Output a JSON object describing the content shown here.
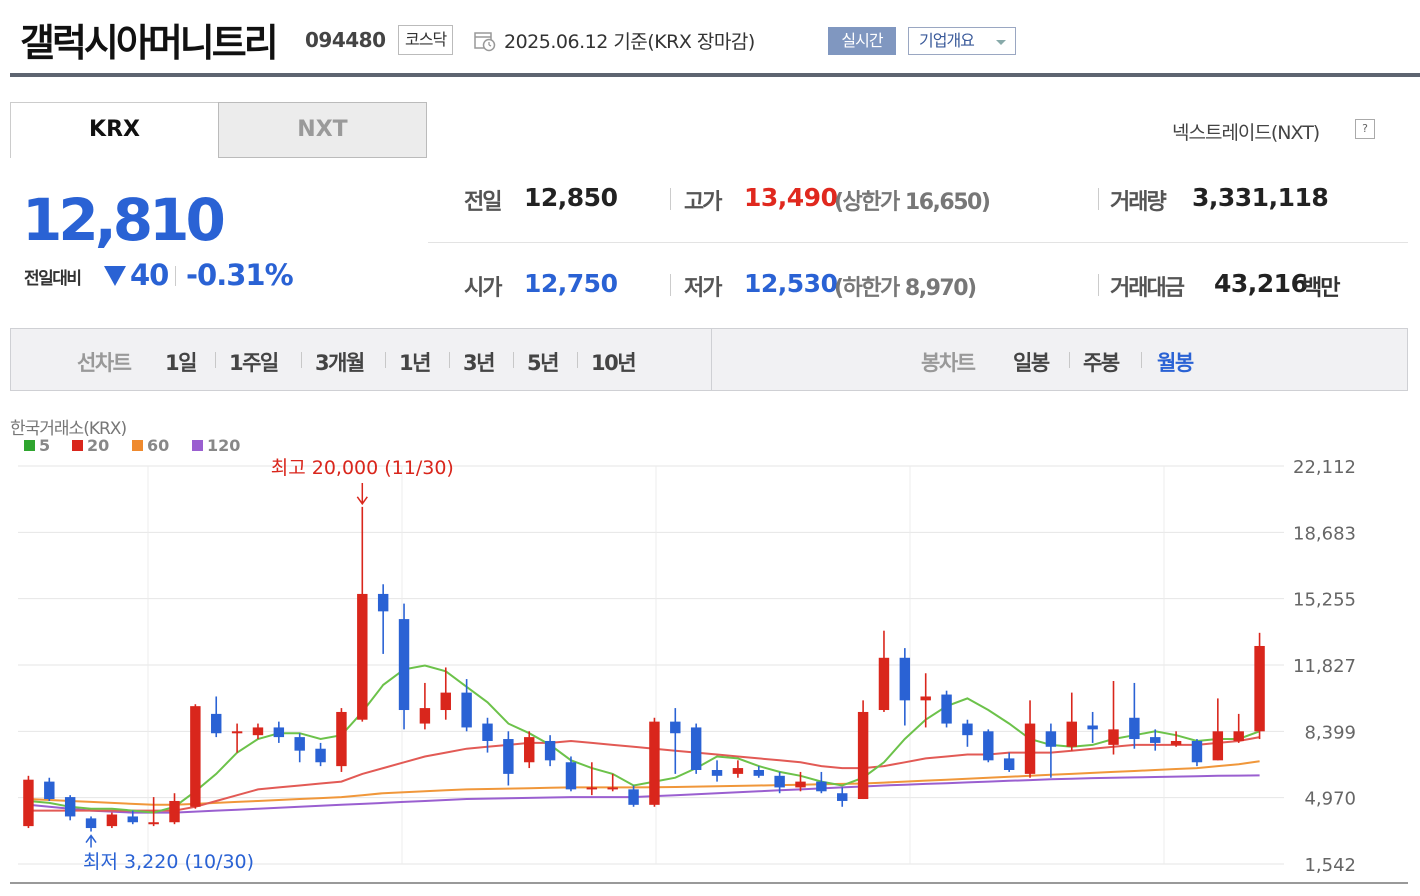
{
  "header": {
    "company": "갤럭시아머니트리",
    "code": "094480",
    "market": "코스닥",
    "date_info": "2025.06.12  기준(KRX 장마감)",
    "realtime_label": "실시간",
    "overview_label": "기업개요"
  },
  "tabs": {
    "krx": "KRX",
    "nxt": "NXT",
    "nxt_link": "넥스트레이드(NXT)",
    "nxt_link_icon": "?"
  },
  "price": {
    "current": "12,810",
    "change_label": "전일대비",
    "change": "40",
    "change_pct": "-0.31%",
    "direction": "down"
  },
  "stats": {
    "prev_label": "전일",
    "prev": "12,850",
    "high_label": "고가",
    "high": "13,490",
    "upper_label": "(상한가 16,650)",
    "volume_label": "거래량",
    "volume": "3,331,118",
    "open_label": "시가",
    "open": "12,750",
    "low_label": "저가",
    "low": "12,530",
    "lower_label": "(하한가 8,970)",
    "amount_label": "거래대금",
    "amount": "43,216",
    "amount_unit": "백만"
  },
  "periods": {
    "line_label": "선차트",
    "line_items": [
      "1일",
      "1주일",
      "3개월",
      "1년",
      "3년",
      "5년",
      "10년"
    ],
    "candle_label": "봉차트",
    "candle_items": [
      "일봉",
      "주봉",
      "월봉"
    ],
    "active": "월봉"
  },
  "colors": {
    "up": "#d9261c",
    "down": "#2a62d4",
    "ma5": "#6cc24a",
    "ma20": "#e25a55",
    "ma60": "#f0973a",
    "ma120": "#9a5fd0"
  },
  "chart_data": {
    "type": "candlestick",
    "source": "한국거래소(KRX)",
    "legend": [
      {
        "name": "5",
        "color": "#2fa52f"
      },
      {
        "name": "20",
        "color": "#d9261c"
      },
      {
        "name": "60",
        "color": "#ef8a2e"
      },
      {
        "name": "120",
        "color": "#9a5fd0"
      }
    ],
    "y_ticks": [
      "22,112",
      "18,683",
      "15,255",
      "11,827",
      "8,399",
      "4,970",
      "1,542"
    ],
    "ylim": [
      1542,
      22112
    ],
    "high_note": "최고 20,000 (11/30)",
    "low_note": "최저 3,220 (10/30)",
    "high_index": 16,
    "low_index": 3,
    "candles": [
      {
        "o": 3500,
        "c": 5900,
        "h": 6100,
        "l": 3400
      },
      {
        "o": 5800,
        "c": 4900,
        "h": 6000,
        "l": 4800
      },
      {
        "o": 5000,
        "c": 4000,
        "h": 5100,
        "l": 3800
      },
      {
        "o": 3900,
        "c": 3400,
        "h": 4000,
        "l": 3220
      },
      {
        "o": 3500,
        "c": 4100,
        "h": 4200,
        "l": 3400
      },
      {
        "o": 4000,
        "c": 3700,
        "h": 4300,
        "l": 3600
      },
      {
        "o": 3600,
        "c": 3700,
        "h": 5000,
        "l": 3500
      },
      {
        "o": 3700,
        "c": 4800,
        "h": 5200,
        "l": 3600
      },
      {
        "o": 4500,
        "c": 9700,
        "h": 9800,
        "l": 4400
      },
      {
        "o": 9300,
        "c": 8300,
        "h": 10200,
        "l": 8100
      },
      {
        "o": 8300,
        "c": 8400,
        "h": 8800,
        "l": 7300
      },
      {
        "o": 8200,
        "c": 8600,
        "h": 8800,
        "l": 8000
      },
      {
        "o": 8600,
        "c": 8100,
        "h": 8900,
        "l": 7800
      },
      {
        "o": 8100,
        "c": 7400,
        "h": 8300,
        "l": 6800
      },
      {
        "o": 7500,
        "c": 6800,
        "h": 7800,
        "l": 6600
      },
      {
        "o": 6600,
        "c": 9400,
        "h": 9600,
        "l": 6300
      },
      {
        "o": 9000,
        "c": 15500,
        "h": 20000,
        "l": 8900
      },
      {
        "o": 15500,
        "c": 14600,
        "h": 16000,
        "l": 12400
      },
      {
        "o": 14200,
        "c": 9500,
        "h": 15000,
        "l": 8500
      },
      {
        "o": 8800,
        "c": 9600,
        "h": 10900,
        "l": 8500
      },
      {
        "o": 9500,
        "c": 10400,
        "h": 11700,
        "l": 9000
      },
      {
        "o": 10400,
        "c": 8600,
        "h": 11100,
        "l": 8400
      },
      {
        "o": 8800,
        "c": 7900,
        "h": 9100,
        "l": 7300
      },
      {
        "o": 8000,
        "c": 6200,
        "h": 8400,
        "l": 5600
      },
      {
        "o": 6800,
        "c": 8100,
        "h": 8400,
        "l": 6500
      },
      {
        "o": 7900,
        "c": 6900,
        "h": 8200,
        "l": 6600
      },
      {
        "o": 6800,
        "c": 5400,
        "h": 7100,
        "l": 5300
      },
      {
        "o": 5400,
        "c": 5500,
        "h": 6800,
        "l": 5100
      },
      {
        "o": 5400,
        "c": 5500,
        "h": 6200,
        "l": 5300
      },
      {
        "o": 5400,
        "c": 4600,
        "h": 5600,
        "l": 4500
      },
      {
        "o": 4600,
        "c": 8900,
        "h": 9100,
        "l": 4500
      },
      {
        "o": 8900,
        "c": 8300,
        "h": 9600,
        "l": 6200
      },
      {
        "o": 8600,
        "c": 6400,
        "h": 8800,
        "l": 6200
      },
      {
        "o": 6400,
        "c": 6100,
        "h": 6900,
        "l": 5800
      },
      {
        "o": 6200,
        "c": 6500,
        "h": 6900,
        "l": 6000
      },
      {
        "o": 6400,
        "c": 6100,
        "h": 6600,
        "l": 6000
      },
      {
        "o": 6100,
        "c": 5500,
        "h": 6300,
        "l": 5200
      },
      {
        "o": 5500,
        "c": 5800,
        "h": 6300,
        "l": 5300
      },
      {
        "o": 5800,
        "c": 5300,
        "h": 6300,
        "l": 5200
      },
      {
        "o": 5200,
        "c": 4800,
        "h": 5500,
        "l": 4500
      },
      {
        "o": 4900,
        "c": 9400,
        "h": 10000,
        "l": 4900
      },
      {
        "o": 9500,
        "c": 12200,
        "h": 13600,
        "l": 9400
      },
      {
        "o": 12200,
        "c": 10000,
        "h": 12700,
        "l": 8700
      },
      {
        "o": 10000,
        "c": 10200,
        "h": 11400,
        "l": 8600
      },
      {
        "o": 10300,
        "c": 8800,
        "h": 10500,
        "l": 8600
      },
      {
        "o": 8800,
        "c": 8200,
        "h": 9000,
        "l": 7600
      },
      {
        "o": 8400,
        "c": 6900,
        "h": 8500,
        "l": 6800
      },
      {
        "o": 7000,
        "c": 6400,
        "h": 7300,
        "l": 6300
      },
      {
        "o": 6200,
        "c": 8800,
        "h": 10000,
        "l": 6000
      },
      {
        "o": 8400,
        "c": 7600,
        "h": 8800,
        "l": 6000
      },
      {
        "o": 7600,
        "c": 8900,
        "h": 10400,
        "l": 7400
      },
      {
        "o": 8700,
        "c": 8500,
        "h": 9400,
        "l": 7800
      },
      {
        "o": 7700,
        "c": 8500,
        "h": 11000,
        "l": 7200
      },
      {
        "o": 9100,
        "c": 8000,
        "h": 10900,
        "l": 7500
      },
      {
        "o": 8100,
        "c": 7800,
        "h": 8500,
        "l": 7400
      },
      {
        "o": 7700,
        "c": 7900,
        "h": 8400,
        "l": 7600
      },
      {
        "o": 7900,
        "c": 6800,
        "h": 8000,
        "l": 6600
      },
      {
        "o": 6900,
        "c": 8400,
        "h": 10100,
        "l": 6900
      },
      {
        "o": 7900,
        "c": 8400,
        "h": 9300,
        "l": 7800
      },
      {
        "o": 8400,
        "c": 12810,
        "h": 13490,
        "l": 8000
      }
    ],
    "ma5": [
      4800,
      4700,
      4500,
      4400,
      4400,
      4300,
      4200,
      4500,
      5300,
      6200,
      7300,
      8000,
      8300,
      8300,
      8000,
      8200,
      9400,
      10800,
      11600,
      11800,
      11500,
      10700,
      9900,
      8800,
      8300,
      7700,
      6900,
      6500,
      6200,
      5600,
      5800,
      6000,
      6500,
      7100,
      7000,
      6600,
      6300,
      6100,
      5800,
      5600,
      6000,
      6800,
      8000,
      9000,
      9700,
      10100,
      9500,
      8800,
      8000,
      7700,
      7600,
      7700,
      8000,
      8200,
      8400,
      8200,
      7900,
      8000,
      8000,
      8400
    ],
    "ma20": [
      4300,
      4300,
      4300,
      4300,
      4300,
      4300,
      4300,
      4300,
      4500,
      4800,
      5100,
      5400,
      5500,
      5600,
      5700,
      5800,
      6200,
      6500,
      6800,
      7100,
      7300,
      7500,
      7600,
      7700,
      7800,
      7800,
      7900,
      7800,
      7700,
      7600,
      7500,
      7400,
      7300,
      7200,
      7100,
      7000,
      6900,
      6800,
      6600,
      6500,
      6500,
      6600,
      6800,
      7000,
      7100,
      7200,
      7200,
      7300,
      7300,
      7300,
      7400,
      7500,
      7600,
      7700,
      7700,
      7700,
      7700,
      7800,
      7900,
      8100
    ],
    "ma60": [
      4900,
      4850,
      4800,
      4750,
      4700,
      4650,
      4600,
      4600,
      4650,
      4700,
      4750,
      4800,
      4850,
      4900,
      4950,
      5000,
      5100,
      5200,
      5250,
      5300,
      5350,
      5400,
      5420,
      5440,
      5460,
      5480,
      5500,
      5500,
      5500,
      5500,
      5510,
      5520,
      5540,
      5560,
      5580,
      5600,
      5620,
      5640,
      5660,
      5680,
      5700,
      5750,
      5800,
      5850,
      5900,
      5950,
      6000,
      6050,
      6100,
      6150,
      6200,
      6250,
      6300,
      6350,
      6400,
      6450,
      6500,
      6600,
      6700,
      6850
    ],
    "ma120": [
      4600,
      4500,
      4400,
      4300,
      4250,
      4200,
      4200,
      4200,
      4250,
      4300,
      4350,
      4400,
      4450,
      4500,
      4550,
      4600,
      4650,
      4700,
      4750,
      4800,
      4850,
      4900,
      4920,
      4940,
      4960,
      4980,
      5000,
      5000,
      5000,
      5000,
      5050,
      5100,
      5150,
      5200,
      5250,
      5300,
      5350,
      5400,
      5450,
      5500,
      5550,
      5600,
      5640,
      5680,
      5720,
      5760,
      5800,
      5840,
      5880,
      5920,
      5950,
      5980,
      6000,
      6020,
      6040,
      6060,
      6080,
      6100,
      6110,
      6120
    ]
  }
}
